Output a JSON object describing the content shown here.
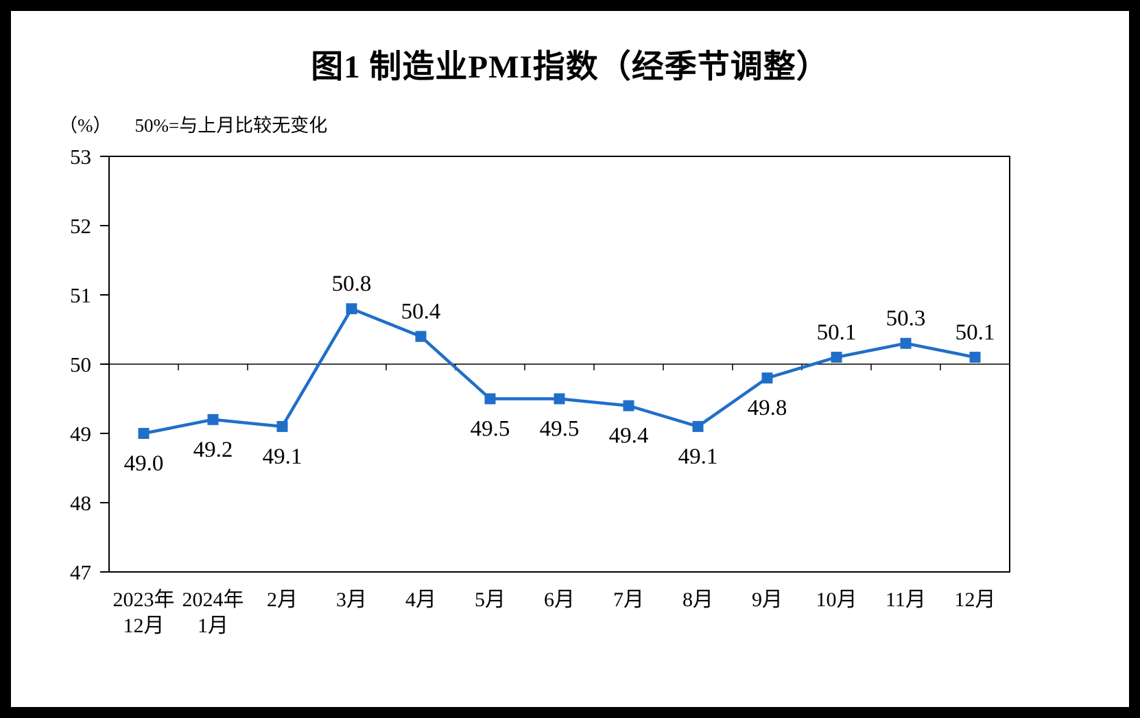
{
  "chart_data": {
    "type": "line",
    "title": "图1  制造业PMI指数（经季节调整）",
    "unit_label": "（%）",
    "note": "50%=与上月比较无变化",
    "categories": [
      "2023年\n12月",
      "2024年\n1月",
      "2月",
      "3月",
      "4月",
      "5月",
      "6月",
      "7月",
      "8月",
      "9月",
      "10月",
      "11月",
      "12月"
    ],
    "values": [
      49.0,
      49.2,
      49.1,
      50.8,
      50.4,
      49.5,
      49.5,
      49.4,
      49.1,
      49.8,
      50.1,
      50.3,
      50.1
    ],
    "labels": [
      "49.0",
      "49.2",
      "49.1",
      "50.8",
      "50.4",
      "49.5",
      "49.5",
      "49.4",
      "49.1",
      "49.8",
      "50.1",
      "50.3",
      "50.1"
    ],
    "xlabel": "",
    "ylabel": "",
    "ylim": [
      47,
      53
    ],
    "yticks": [
      53,
      52,
      51,
      50,
      49,
      48,
      47
    ],
    "reference_line": 50,
    "line_color": "#1F6FC8",
    "marker": "square",
    "grid": false,
    "legend": false
  }
}
